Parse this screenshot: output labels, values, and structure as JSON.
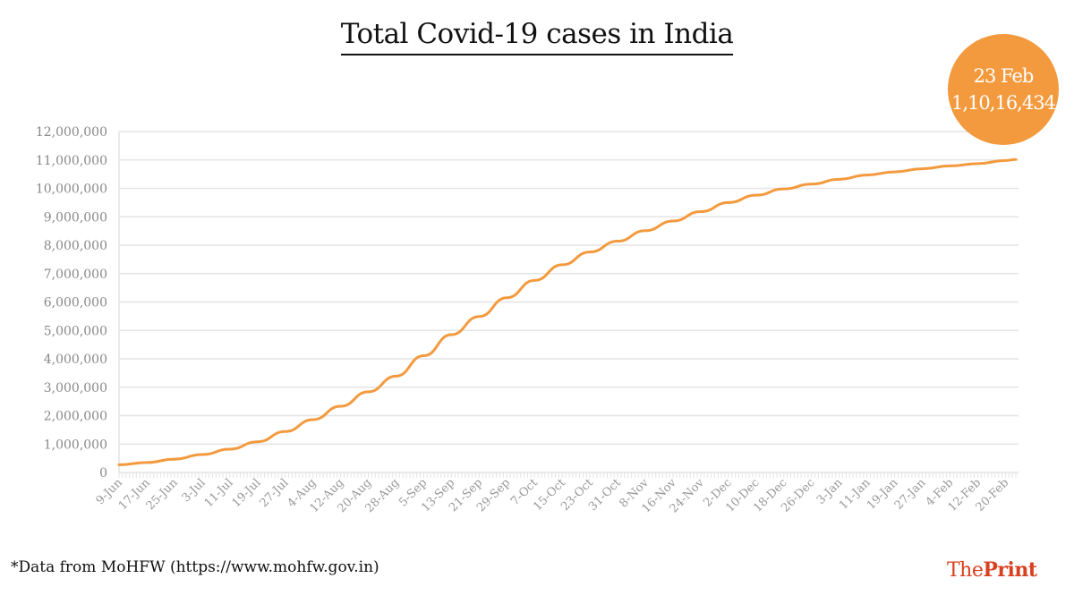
{
  "chart_data": {
    "type": "line",
    "title": "Total Covid-19 cases in India",
    "xlabel": "",
    "ylabel": "",
    "ylim": [
      0,
      12000000
    ],
    "yticks": [
      0,
      1000000,
      2000000,
      3000000,
      4000000,
      5000000,
      6000000,
      7000000,
      8000000,
      9000000,
      10000000,
      11000000,
      12000000
    ],
    "ytick_labels": [
      "0",
      "1,000,000",
      "2,000,000",
      "3,000,000",
      "4,000,000",
      "5,000,000",
      "6,000,000",
      "7,000,000",
      "8,000,000",
      "9,000,000",
      "10,000,000",
      "11,000,000",
      "12,000,000"
    ],
    "grid": "horizontal",
    "line_color": "#f39a3e",
    "x": [
      "9-Jun",
      "17-Jun",
      "25-Jun",
      "3-Jul",
      "11-Jul",
      "19-Jul",
      "27-Jul",
      "4-Aug",
      "12-Aug",
      "20-Aug",
      "28-Aug",
      "5-Sep",
      "13-Sep",
      "21-Sep",
      "29-Sep",
      "7-Oct",
      "15-Oct",
      "23-Oct",
      "31-Oct",
      "8-Nov",
      "16-Nov",
      "24-Nov",
      "2-Dec",
      "10-Dec",
      "18-Dec",
      "26-Dec",
      "3-Jan",
      "11-Jan",
      "19-Jan",
      "27-Jan",
      "4-Feb",
      "12-Feb",
      "20-Feb",
      "23-Feb"
    ],
    "xtick_labels": [
      "9-Jun",
      "17-Jun",
      "25-Jun",
      "3-Jul",
      "11-Jul",
      "19-Jul",
      "27-Jul",
      "4-Aug",
      "12-Aug",
      "20-Aug",
      "28-Aug",
      "5-Sep",
      "13-Sep",
      "21-Sep",
      "29-Sep",
      "7-Oct",
      "15-Oct",
      "23-Oct",
      "31-Oct",
      "8-Nov",
      "16-Nov",
      "24-Nov",
      "2-Dec",
      "10-Dec",
      "18-Dec",
      "26-Dec",
      "3-Jan",
      "11-Jan",
      "19-Jan",
      "27-Jan",
      "4-Feb",
      "12-Feb",
      "20-Feb"
    ],
    "values": [
      270000,
      350000,
      470000,
      630000,
      820000,
      1080000,
      1440000,
      1860000,
      2330000,
      2840000,
      3390000,
      4110000,
      4850000,
      5490000,
      6150000,
      6760000,
      7310000,
      7760000,
      8140000,
      8510000,
      8850000,
      9180000,
      9500000,
      9760000,
      9980000,
      10150000,
      10320000,
      10470000,
      10580000,
      10690000,
      10790000,
      10870000,
      10980000,
      11016434
    ],
    "annotation": {
      "date": "23 Feb",
      "value": "1,10,16,434",
      "color": "#f39a3e"
    }
  },
  "source": "*Data from MoHFW (https://www.mohfw.gov.in)",
  "logo": {
    "part1": "The",
    "part2": "Print",
    "color": "#d9401f"
  }
}
